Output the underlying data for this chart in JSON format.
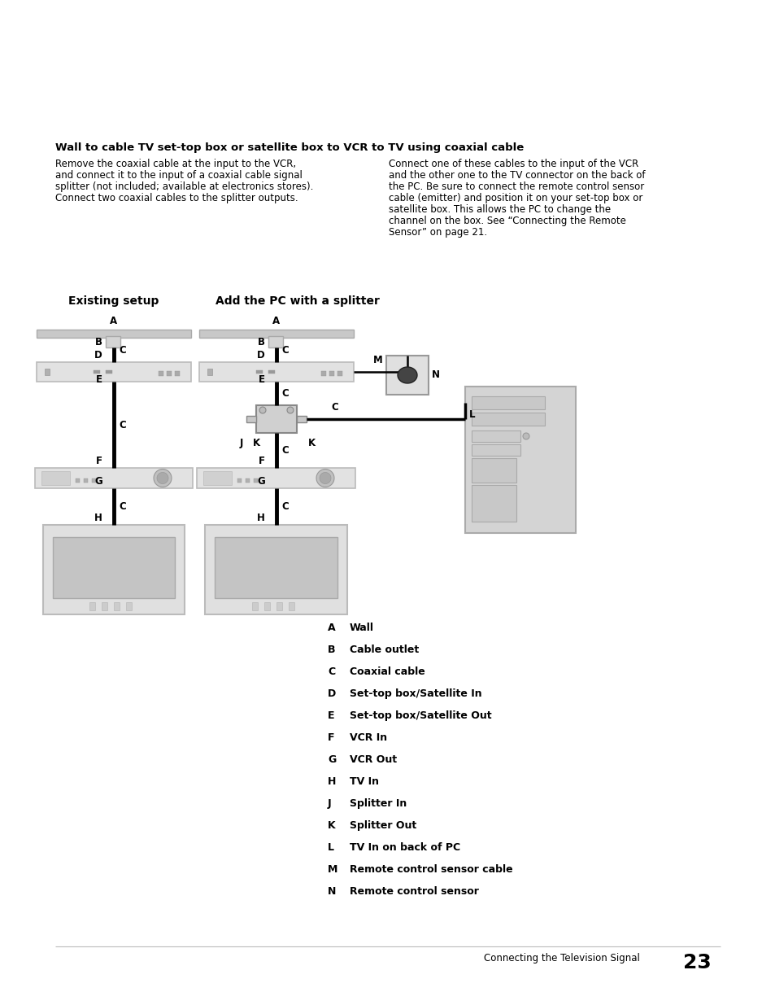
{
  "page_bg": "#ffffff",
  "title": "Wall to cable TV set-top box or satellite box to VCR to TV using coaxial cable",
  "left_para_lines": [
    "Remove the coaxial cable at the input to the VCR,",
    "and connect it to the input of a coaxial cable signal",
    "splitter (not included; available at electronics stores).",
    "Connect two coaxial cables to the splitter outputs."
  ],
  "right_para_lines": [
    "Connect one of these cables to the input of the VCR",
    "and the other one to the TV connector on the back of",
    "the PC. Be sure to connect the remote control sensor",
    "cable (emitter) and position it on your set-top box or",
    "satellite box. This allows the PC to change the",
    "channel on the box. See “Connecting the Remote",
    "Sensor” on page 21."
  ],
  "diagram_left_title": "Existing setup",
  "diagram_right_title": "Add the PC with a splitter",
  "legend": [
    [
      "A",
      "Wall"
    ],
    [
      "B",
      "Cable outlet"
    ],
    [
      "C",
      "Coaxial cable"
    ],
    [
      "D",
      "Set-top box/Satellite In"
    ],
    [
      "E",
      "Set-top box/Satellite Out"
    ],
    [
      "F",
      "VCR In"
    ],
    [
      "G",
      "VCR Out"
    ],
    [
      "H",
      "TV In"
    ],
    [
      "J",
      "Splitter In"
    ],
    [
      "K",
      "Splitter Out"
    ],
    [
      "L",
      "TV In on back of PC"
    ],
    [
      "M",
      "Remote control sensor cable"
    ],
    [
      "N",
      "Remote control sensor"
    ]
  ],
  "footer_text": "Connecting the Television Signal",
  "footer_page": "23",
  "title_fontsize": 9.5,
  "body_fontsize": 8.5,
  "legend_fontsize": 9.0,
  "diagram_title_fontsize": 10.0
}
